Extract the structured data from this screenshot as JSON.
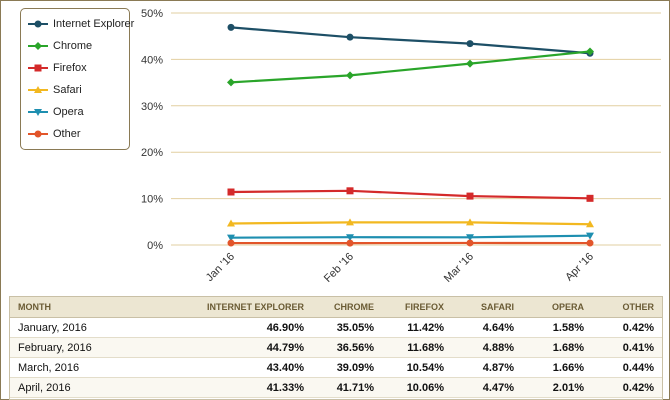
{
  "chart_data": {
    "type": "line",
    "categories": [
      "Jan '16",
      "Feb '16",
      "Mar '16",
      "Apr '16"
    ],
    "ylim": [
      0,
      50
    ],
    "yticks": [
      "0%",
      "10%",
      "20%",
      "30%",
      "40%",
      "50%"
    ],
    "ytick_values": [
      0,
      10,
      20,
      30,
      40,
      50
    ],
    "grid": true,
    "legend_position": "top-left",
    "series": [
      {
        "name": "Internet Explorer",
        "color": "#1d4f66",
        "marker": "circle",
        "values": [
          46.9,
          44.79,
          43.4,
          41.33
        ]
      },
      {
        "name": "Chrome",
        "color": "#2aa52a",
        "marker": "diamond",
        "values": [
          35.05,
          36.56,
          39.09,
          41.71
        ]
      },
      {
        "name": "Firefox",
        "color": "#d42a2a",
        "marker": "square",
        "values": [
          11.42,
          11.68,
          10.54,
          10.06
        ]
      },
      {
        "name": "Safari",
        "color": "#f2b820",
        "marker": "triangle-up",
        "values": [
          4.64,
          4.88,
          4.87,
          4.47
        ]
      },
      {
        "name": "Opera",
        "color": "#1e8fb0",
        "marker": "triangle-down",
        "values": [
          1.58,
          1.68,
          1.66,
          2.01
        ]
      },
      {
        "name": "Other",
        "color": "#e2552a",
        "marker": "circle",
        "values": [
          0.42,
          0.41,
          0.44,
          0.42
        ]
      }
    ]
  },
  "table": {
    "headers": [
      "MONTH",
      "INTERNET EXPLORER",
      "CHROME",
      "FIREFOX",
      "SAFARI",
      "OPERA",
      "OTHER"
    ],
    "rows": [
      [
        "January, 2016",
        "46.90%",
        "35.05%",
        "11.42%",
        "4.64%",
        "1.58%",
        "0.42%"
      ],
      [
        "February, 2016",
        "44.79%",
        "36.56%",
        "11.68%",
        "4.88%",
        "1.68%",
        "0.41%"
      ],
      [
        "March, 2016",
        "43.40%",
        "39.09%",
        "10.54%",
        "4.87%",
        "1.66%",
        "0.44%"
      ],
      [
        "April, 2016",
        "41.33%",
        "41.71%",
        "10.06%",
        "4.47%",
        "2.01%",
        "0.42%"
      ]
    ]
  }
}
